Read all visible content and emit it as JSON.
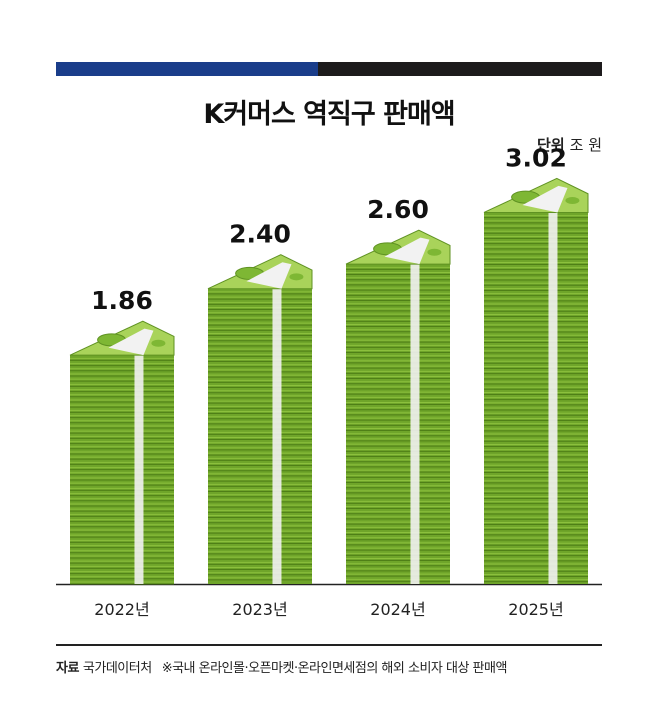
{
  "header": {
    "title": "K커머스 역직구 판매액",
    "unit_label": "단위",
    "unit_value": "조 원"
  },
  "footer": {
    "source_label": "자료",
    "source_value": "국가데이터처",
    "note": "※국내 온라인몰·오픈마켓·온라인면세점의 해외 소비자 대상 판매액"
  },
  "colors": {
    "accent_blue": "#1a3d8a",
    "accent_black": "#1d1b1c",
    "money_green": "#6fa52a",
    "money_light": "#a9d35a",
    "band_white": "#f2f2f2"
  },
  "chart_data": {
    "type": "bar",
    "title": "K커머스 역직구 판매액",
    "unit": "조 원",
    "categories": [
      "2022년",
      "2023년",
      "2024년",
      "2025년"
    ],
    "values": [
      1.86,
      2.4,
      2.6,
      3.02
    ],
    "value_labels": [
      "1.86",
      "2.40",
      "2.60",
      "3.02"
    ],
    "ylim": [
      0,
      3.3
    ],
    "grid": false,
    "legend": "none",
    "bar_style": "stacked-banknotes"
  }
}
